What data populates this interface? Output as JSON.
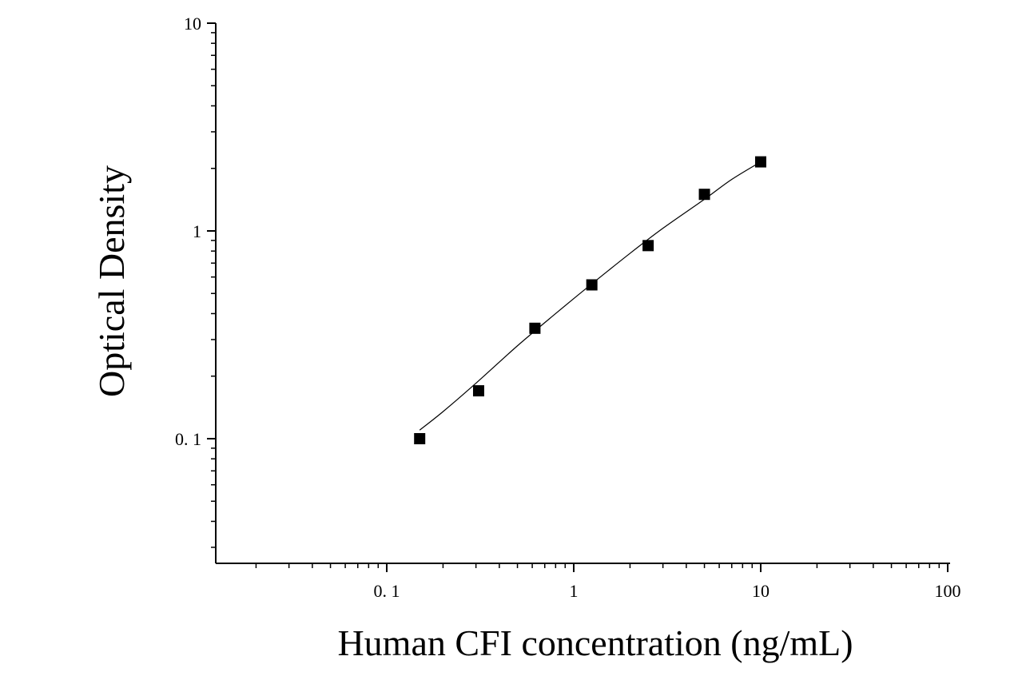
{
  "chart_data": {
    "type": "scatter",
    "title": "",
    "xlabel": "Human CFI concentration (ng/mL)",
    "ylabel": "Optical Density",
    "x_scale": "log",
    "y_scale": "log",
    "xlim": [
      0.01,
      100
    ],
    "ylim": [
      0.025,
      10
    ],
    "x_ticks": [
      {
        "value": 0.1,
        "label": "0. 1"
      },
      {
        "value": 1,
        "label": "1"
      },
      {
        "value": 10,
        "label": "10"
      },
      {
        "value": 100,
        "label": "100"
      }
    ],
    "y_ticks": [
      {
        "value": 0.1,
        "label": "0. 1"
      },
      {
        "value": 1,
        "label": "1"
      },
      {
        "value": 10,
        "label": "10"
      }
    ],
    "grid": false,
    "legend": "none",
    "marker": "square",
    "marker_color": "#000000",
    "line_color": "#000000",
    "series": [
      {
        "x": [
          0.15,
          0.31,
          0.62,
          1.25,
          2.5,
          5,
          10
        ],
        "y": [
          0.1,
          0.17,
          0.34,
          0.55,
          0.85,
          1.5,
          2.15
        ]
      }
    ],
    "fit_curve": {
      "x": [
        0.15,
        0.2,
        0.3,
        0.5,
        0.8,
        1.2,
        2,
        3,
        5,
        7,
        10
      ],
      "y": [
        0.11,
        0.135,
        0.185,
        0.28,
        0.4,
        0.54,
        0.78,
        1.03,
        1.42,
        1.77,
        2.15
      ]
    }
  }
}
